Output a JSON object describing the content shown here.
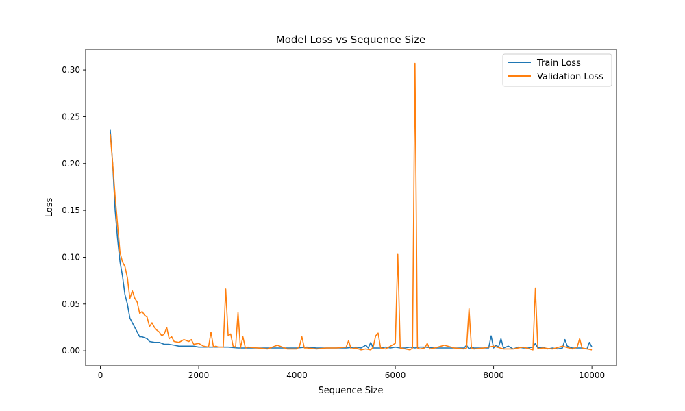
{
  "chart_data": {
    "type": "line",
    "title": "Model Loss vs Sequence Size",
    "xlabel": "Sequence Size",
    "ylabel": "Loss",
    "xlim": [
      -300,
      10500
    ],
    "ylim": [
      -0.016,
      0.322
    ],
    "xticks": [
      0,
      2000,
      4000,
      6000,
      8000,
      10000
    ],
    "xtick_labels": [
      "0",
      "2000",
      "4000",
      "6000",
      "8000",
      "10000"
    ],
    "yticks": [
      0.0,
      0.05,
      0.1,
      0.15,
      0.2,
      0.25,
      0.3
    ],
    "ytick_labels": [
      "0.00",
      "0.05",
      "0.10",
      "0.15",
      "0.20",
      "0.25",
      "0.30"
    ],
    "grid": false,
    "legend_position": "upper right",
    "series": [
      {
        "name": "Train Loss",
        "color": "#1f77b4",
        "x": [
          200,
          250,
          300,
          350,
          400,
          450,
          500,
          550,
          600,
          650,
          700,
          750,
          800,
          850,
          900,
          950,
          1000,
          1100,
          1200,
          1300,
          1400,
          1500,
          1600,
          1700,
          1800,
          1900,
          2000,
          2200,
          2400,
          2600,
          2800,
          3000,
          3200,
          3400,
          3600,
          3800,
          4000,
          4200,
          4400,
          4600,
          4800,
          5000,
          5200,
          5300,
          5400,
          5450,
          5500,
          5550,
          5600,
          5700,
          5800,
          5900,
          6000,
          6100,
          6200,
          6300,
          6400,
          6500,
          6600,
          6800,
          7000,
          7200,
          7400,
          7450,
          7500,
          7550,
          7600,
          7700,
          7800,
          7900,
          7950,
          8000,
          8050,
          8100,
          8150,
          8200,
          8300,
          8400,
          8500,
          8600,
          8700,
          8800,
          8850,
          8900,
          9000,
          9100,
          9200,
          9300,
          9400,
          9450,
          9500,
          9600,
          9700,
          9800,
          9900,
          9950,
          10000
        ],
        "y": [
          0.236,
          0.2,
          0.15,
          0.12,
          0.095,
          0.08,
          0.06,
          0.05,
          0.035,
          0.03,
          0.025,
          0.02,
          0.015,
          0.015,
          0.014,
          0.013,
          0.01,
          0.009,
          0.009,
          0.007,
          0.007,
          0.006,
          0.005,
          0.005,
          0.005,
          0.005,
          0.004,
          0.004,
          0.004,
          0.004,
          0.003,
          0.003,
          0.003,
          0.003,
          0.003,
          0.003,
          0.003,
          0.004,
          0.003,
          0.003,
          0.003,
          0.003,
          0.004,
          0.003,
          0.006,
          0.003,
          0.009,
          0.003,
          0.003,
          0.003,
          0.004,
          0.003,
          0.004,
          0.003,
          0.003,
          0.004,
          0.003,
          0.004,
          0.004,
          0.003,
          0.003,
          0.003,
          0.003,
          0.006,
          0.002,
          0.004,
          0.003,
          0.003,
          0.003,
          0.003,
          0.016,
          0.003,
          0.006,
          0.004,
          0.013,
          0.003,
          0.005,
          0.002,
          0.004,
          0.003,
          0.003,
          0.004,
          0.008,
          0.003,
          0.004,
          0.002,
          0.003,
          0.002,
          0.003,
          0.012,
          0.005,
          0.003,
          0.003,
          0.003,
          0.002,
          0.009,
          0.004
        ]
      },
      {
        "name": "Validation Loss",
        "color": "#ff7f0e",
        "x": [
          200,
          250,
          300,
          350,
          400,
          450,
          500,
          550,
          600,
          650,
          700,
          750,
          800,
          850,
          900,
          950,
          1000,
          1050,
          1100,
          1150,
          1200,
          1250,
          1300,
          1350,
          1400,
          1450,
          1500,
          1600,
          1700,
          1800,
          1850,
          1900,
          2000,
          2100,
          2200,
          2250,
          2300,
          2350,
          2400,
          2500,
          2550,
          2600,
          2650,
          2700,
          2750,
          2800,
          2850,
          2900,
          2950,
          3000,
          3200,
          3400,
          3600,
          3800,
          4000,
          4050,
          4100,
          4150,
          4200,
          4400,
          4600,
          4800,
          5000,
          5050,
          5100,
          5200,
          5300,
          5400,
          5500,
          5550,
          5600,
          5650,
          5700,
          5800,
          5900,
          6000,
          6050,
          6100,
          6200,
          6300,
          6350,
          6400,
          6450,
          6500,
          6600,
          6650,
          6700,
          6800,
          7000,
          7200,
          7400,
          7450,
          7500,
          7550,
          7600,
          7800,
          8000,
          8200,
          8400,
          8600,
          8800,
          8850,
          8900,
          9000,
          9200,
          9400,
          9600,
          9700,
          9750,
          9800,
          9900,
          10000
        ],
        "y": [
          0.232,
          0.2,
          0.165,
          0.135,
          0.105,
          0.095,
          0.09,
          0.078,
          0.056,
          0.064,
          0.056,
          0.052,
          0.04,
          0.042,
          0.038,
          0.036,
          0.026,
          0.03,
          0.025,
          0.022,
          0.02,
          0.016,
          0.018,
          0.025,
          0.013,
          0.015,
          0.01,
          0.009,
          0.012,
          0.01,
          0.012,
          0.007,
          0.008,
          0.005,
          0.004,
          0.02,
          0.004,
          0.005,
          0.004,
          0.004,
          0.066,
          0.016,
          0.018,
          0.005,
          0.004,
          0.041,
          0.003,
          0.015,
          0.003,
          0.004,
          0.003,
          0.002,
          0.006,
          0.002,
          0.002,
          0.005,
          0.015,
          0.003,
          0.003,
          0.002,
          0.003,
          0.003,
          0.004,
          0.011,
          0.002,
          0.003,
          0.001,
          0.002,
          0.001,
          0.004,
          0.016,
          0.019,
          0.003,
          0.002,
          0.005,
          0.008,
          0.103,
          0.003,
          0.002,
          0.001,
          0.003,
          0.307,
          0.003,
          0.002,
          0.003,
          0.008,
          0.002,
          0.003,
          0.006,
          0.003,
          0.002,
          0.003,
          0.045,
          0.003,
          0.002,
          0.003,
          0.005,
          0.002,
          0.002,
          0.004,
          0.001,
          0.067,
          0.002,
          0.003,
          0.002,
          0.005,
          0.002,
          0.004,
          0.013,
          0.003,
          0.002,
          0.001
        ]
      }
    ]
  }
}
